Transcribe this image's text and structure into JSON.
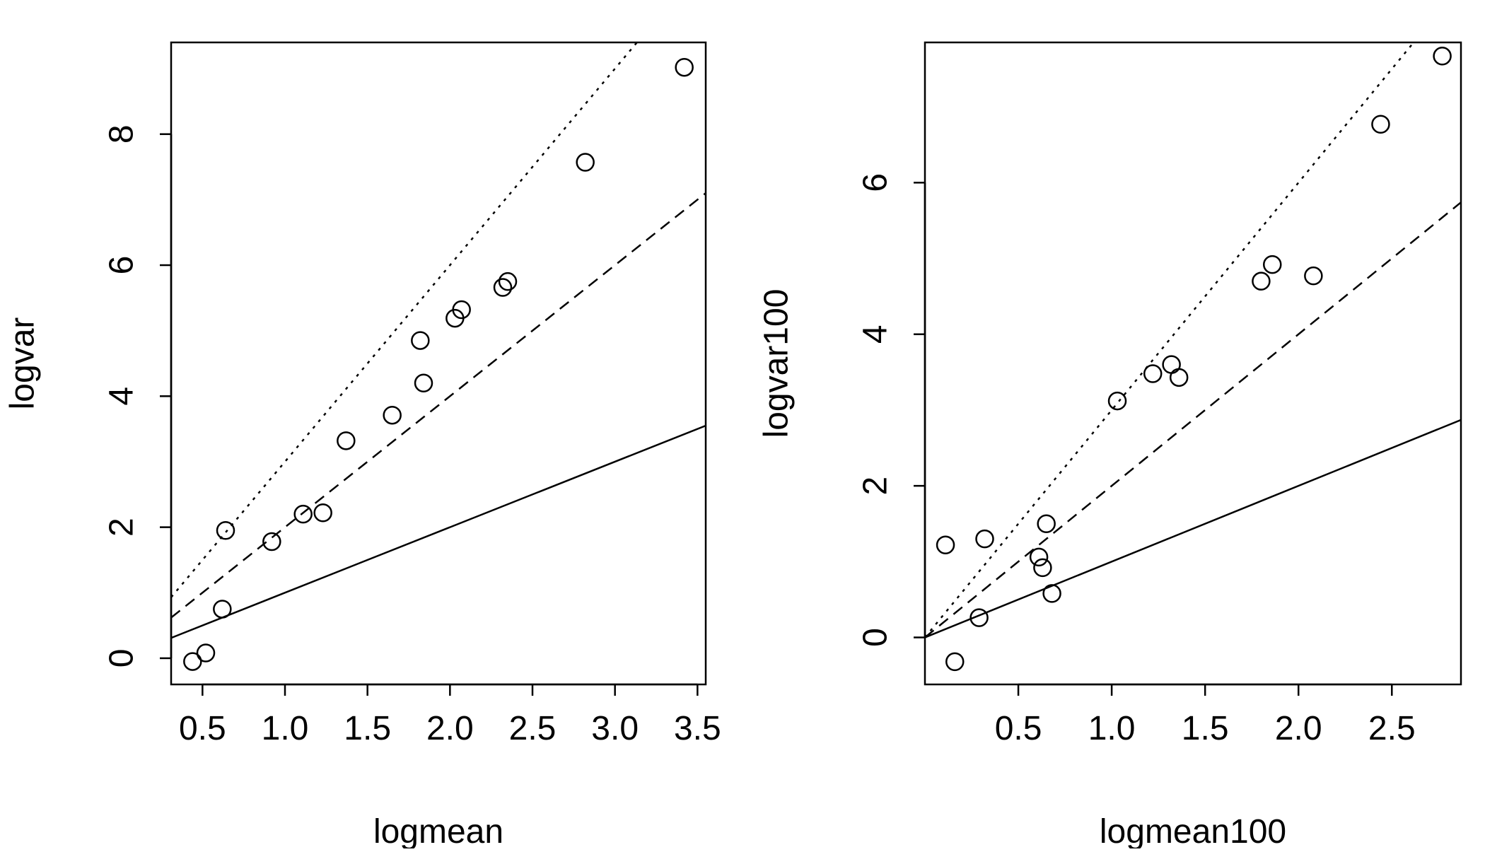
{
  "chart_data": [
    {
      "type": "scatter",
      "title": "",
      "xlabel": "logmean",
      "ylabel": "logvar",
      "xlim": [
        0.31,
        3.55
      ],
      "ylim": [
        -0.4,
        9.4
      ],
      "xticks": [
        "0.5",
        "1.0",
        "1.5",
        "2.0",
        "2.5",
        "3.0",
        "3.5"
      ],
      "yticks": [
        "0",
        "2",
        "4",
        "6",
        "8"
      ],
      "points": [
        {
          "x": 0.44,
          "y": -0.05
        },
        {
          "x": 0.52,
          "y": 0.08
        },
        {
          "x": 0.62,
          "y": 0.75
        },
        {
          "x": 0.64,
          "y": 1.95
        },
        {
          "x": 0.92,
          "y": 1.78
        },
        {
          "x": 1.11,
          "y": 2.2
        },
        {
          "x": 1.23,
          "y": 2.22
        },
        {
          "x": 1.37,
          "y": 3.32
        },
        {
          "x": 1.65,
          "y": 3.71
        },
        {
          "x": 1.82,
          "y": 4.85
        },
        {
          "x": 1.84,
          "y": 4.2
        },
        {
          "x": 2.03,
          "y": 5.19
        },
        {
          "x": 2.07,
          "y": 5.32
        },
        {
          "x": 2.32,
          "y": 5.66
        },
        {
          "x": 2.35,
          "y": 5.75
        },
        {
          "x": 2.82,
          "y": 7.57
        },
        {
          "x": 3.42,
          "y": 9.02
        }
      ],
      "lines": [
        {
          "style": "solid",
          "intercept": 0,
          "slope": 1
        },
        {
          "style": "dashed",
          "intercept": 0,
          "slope": 2
        },
        {
          "style": "dotted",
          "intercept": 0,
          "slope": 3
        }
      ]
    },
    {
      "type": "scatter",
      "title": "",
      "xlabel": "logmean100",
      "ylabel": "logvar100",
      "xlim": [
        0.0,
        2.87
      ],
      "ylim": [
        -0.62,
        7.85
      ],
      "xticks": [
        "0.5",
        "1.0",
        "1.5",
        "2.0",
        "2.5"
      ],
      "yticks": [
        "0",
        "2",
        "4",
        "6"
      ],
      "points": [
        {
          "x": 0.11,
          "y": 1.22
        },
        {
          "x": 0.16,
          "y": -0.32
        },
        {
          "x": 0.29,
          "y": 0.26
        },
        {
          "x": 0.32,
          "y": 1.3
        },
        {
          "x": 0.61,
          "y": 1.06
        },
        {
          "x": 0.63,
          "y": 0.92
        },
        {
          "x": 0.65,
          "y": 1.5
        },
        {
          "x": 0.68,
          "y": 0.58
        },
        {
          "x": 1.03,
          "y": 3.12
        },
        {
          "x": 1.22,
          "y": 3.48
        },
        {
          "x": 1.32,
          "y": 3.6
        },
        {
          "x": 1.36,
          "y": 3.43
        },
        {
          "x": 1.8,
          "y": 4.7
        },
        {
          "x": 1.86,
          "y": 4.92
        },
        {
          "x": 2.08,
          "y": 4.77
        },
        {
          "x": 2.44,
          "y": 6.77
        },
        {
          "x": 2.77,
          "y": 7.67
        }
      ],
      "lines": [
        {
          "style": "solid",
          "intercept": 0,
          "slope": 1
        },
        {
          "style": "dashed",
          "intercept": 0,
          "slope": 2
        },
        {
          "style": "dotted",
          "intercept": 0,
          "slope": 3
        }
      ]
    }
  ]
}
